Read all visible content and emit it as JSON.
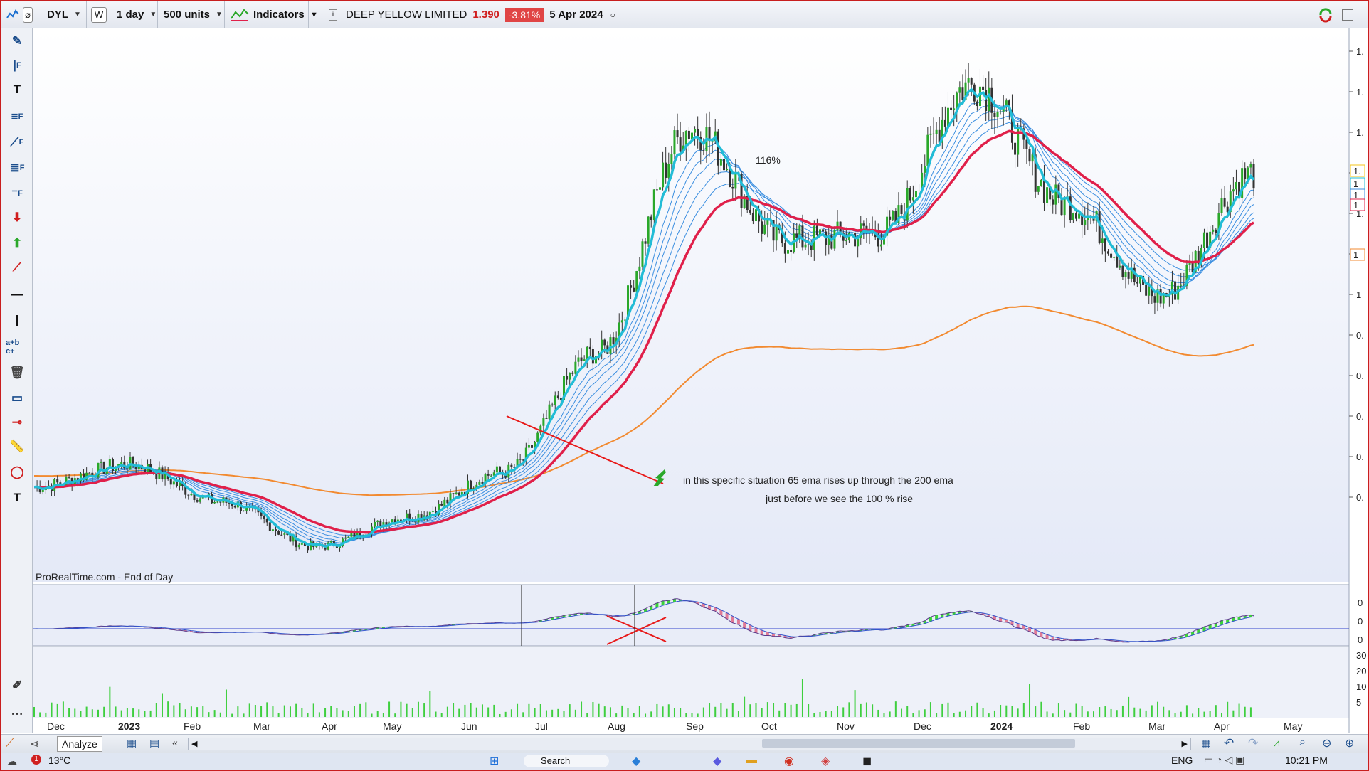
{
  "toolbar": {
    "symbol": "DYL",
    "w_button": "W",
    "timeframe": "1 day",
    "units": "500 units",
    "indicators_label": "Indicators",
    "instrument_name": "DEEP YELLOW LIMITED",
    "last_price": "1.390",
    "change": "-3.81%",
    "date": "5 Apr 2024"
  },
  "chart": {
    "source_label": "ProRealTime.com - End of Day",
    "annotation_pct": "116%",
    "annotation_line1": "in this specific situation 65 ema rises up through the 200 ema",
    "annotation_line2": "just before we see the 100 % rise",
    "price_axis_ticks": [
      "1.",
      "1.",
      "1.",
      "1.",
      "1.",
      "1.",
      "1",
      "0.",
      "0.",
      "0.",
      "0.",
      "0."
    ],
    "price_badges": [
      "1.",
      "1",
      "1",
      "1",
      "1"
    ],
    "macd_axis_ticks": [
      "0",
      "0",
      "0"
    ],
    "volume_axis_ticks": [
      "30",
      "20",
      "10",
      "5"
    ]
  },
  "chart_data": {
    "type": "candlestick",
    "title": "",
    "x_labels": [
      "Dec",
      "2023",
      "Feb",
      "Mar",
      "Apr",
      "May",
      "Jun",
      "Jul",
      "Aug",
      "Sep",
      "Oct",
      "Nov",
      "Dec",
      "2024",
      "Feb",
      "Mar",
      "Apr",
      "May"
    ],
    "price_level_shape": [
      0.54,
      0.6,
      0.5,
      0.38,
      0.46,
      0.58,
      0.9,
      1.5,
      1.2,
      1.22,
      1.62,
      1.3,
      1.05,
      1.38
    ],
    "series_colors": {
      "ema_fast": "#22bcd6",
      "ema_ribbon": "#3a8ee0",
      "ema_65": "#e0204a",
      "ema_200": "#f28a30",
      "candle_up": "#2aa82a",
      "candle_down": "#333333",
      "volume": "#3fcf3f"
    }
  },
  "bottombar": {
    "analyze_label": "Analyze"
  },
  "taskbar": {
    "temperature": "13°C",
    "search_label": "Search",
    "language": "ENG",
    "time": "10:21 PM",
    "notification_count": "1"
  }
}
